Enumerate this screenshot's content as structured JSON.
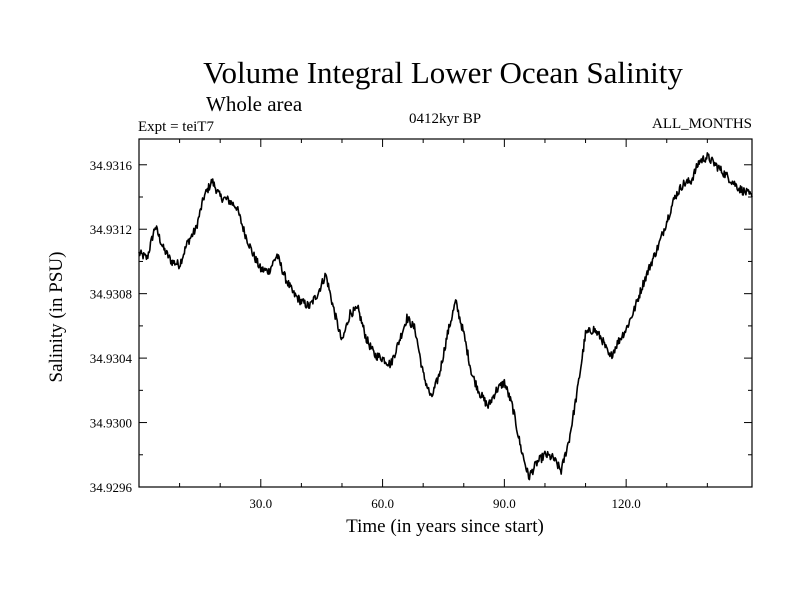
{
  "chart_data": {
    "type": "line",
    "title": "Volume Integral Lower Ocean Salinity",
    "subtitle": "Whole area",
    "left_label": "Expt = teiT7",
    "center_label": "0412kyr BP",
    "right_label": "ALL_MONTHS",
    "xlabel": "Time (in years since start)",
    "ylabel": "Salinity (in PSU)",
    "xlim": [
      0,
      151
    ],
    "ylim": [
      34.9296,
      34.93176
    ],
    "x_ticks": [
      30,
      60,
      90,
      120
    ],
    "x_tick_labels": [
      "30.0",
      "60.0",
      "90.0",
      "120.0"
    ],
    "y_ticks": [
      34.9296,
      34.93,
      34.9304,
      34.9308,
      34.9312,
      34.9316
    ],
    "y_tick_labels": [
      "34.9296",
      "34.9300",
      "34.9304",
      "34.9308",
      "34.9312",
      "34.9316"
    ],
    "grid": false,
    "series": [
      {
        "name": "salinity",
        "color": "#000000",
        "x": [
          0,
          2,
          4,
          6,
          8,
          10,
          12,
          14,
          16,
          18,
          20,
          22,
          24,
          26,
          28,
          30,
          32,
          34,
          36,
          38,
          40,
          42,
          44,
          46,
          48,
          50,
          52,
          54,
          56,
          58,
          60,
          62,
          64,
          66,
          68,
          70,
          72,
          74,
          76,
          78,
          80,
          82,
          84,
          86,
          88,
          90,
          92,
          94,
          96,
          98,
          100,
          102,
          104,
          106,
          108,
          110,
          112,
          114,
          116,
          118,
          120,
          122,
          124,
          126,
          128,
          130,
          132,
          134,
          136,
          138,
          140,
          142,
          144,
          146,
          148,
          150,
          151
        ],
        "values": [
          34.93105,
          34.93102,
          34.93122,
          34.93108,
          34.931,
          34.93098,
          34.93112,
          34.9312,
          34.9314,
          34.9315,
          34.9314,
          34.93138,
          34.93134,
          34.93118,
          34.93105,
          34.93095,
          34.93094,
          34.93104,
          34.9309,
          34.9308,
          34.93075,
          34.93072,
          34.9308,
          34.93092,
          34.9307,
          34.9305,
          34.93068,
          34.9307,
          34.93052,
          34.93042,
          34.9304,
          34.93036,
          34.9305,
          34.93065,
          34.93058,
          34.9303,
          34.93015,
          34.9303,
          34.93055,
          34.93075,
          34.93055,
          34.9303,
          34.93018,
          34.9301,
          34.9302,
          34.93025,
          34.9301,
          34.92985,
          34.92966,
          34.92975,
          34.9298,
          34.92978,
          34.9297,
          34.9299,
          34.9302,
          34.93055,
          34.93058,
          34.93052,
          34.9304,
          34.9305,
          34.93058,
          34.9307,
          34.93085,
          34.93098,
          34.9311,
          34.93125,
          34.9314,
          34.93148,
          34.9315,
          34.93162,
          34.93165,
          34.9316,
          34.93155,
          34.9315,
          34.93145,
          34.93142,
          34.9314
        ]
      }
    ]
  }
}
